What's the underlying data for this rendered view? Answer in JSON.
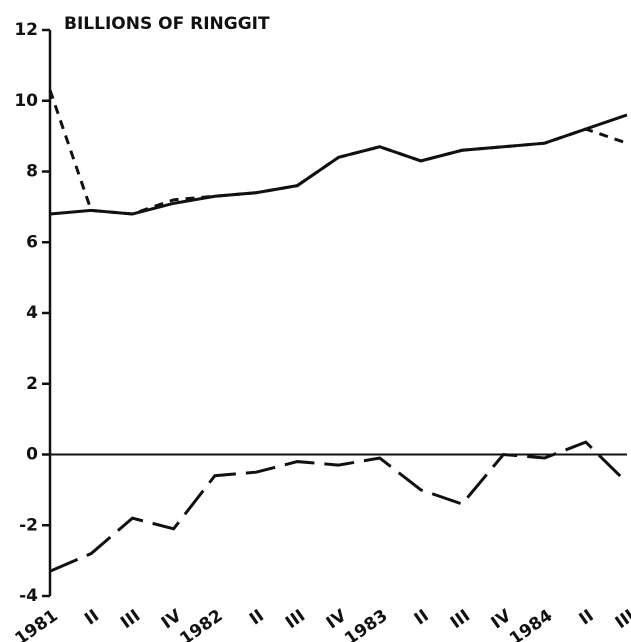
{
  "chart_data": {
    "type": "line",
    "title": "BILLIONS OF RINGGIT",
    "categories": [
      "1981",
      "II",
      "III",
      "IV",
      "1982",
      "II",
      "III",
      "IV",
      "1983",
      "II",
      "III",
      "IV",
      "1984",
      "II",
      "III"
    ],
    "series": [
      {
        "color": "#111111",
        "style": "solid",
        "values": [
          6.8,
          6.9,
          6.8,
          7.1,
          7.3,
          7.4,
          7.6,
          8.4,
          8.7,
          8.3,
          8.6,
          8.7,
          8.8,
          9.2,
          9.6
        ]
      },
      {
        "color": "#111111",
        "style": "dashed",
        "values": [
          10.3,
          6.9,
          6.8,
          7.2,
          7.3,
          7.4,
          7.6,
          8.4,
          8.7,
          8.3,
          8.6,
          8.7,
          8.8,
          9.2,
          8.8
        ]
      },
      {
        "color": "#111111",
        "style": "long-dash",
        "values": [
          -3.3,
          -2.8,
          -1.8,
          -2.1,
          -0.6,
          -0.5,
          -0.2,
          -0.3,
          -0.1,
          -1.0,
          -1.4,
          0.0,
          -0.1,
          0.35,
          -0.8
        ]
      }
    ],
    "ylim": [
      -4,
      12
    ],
    "yticks": [
      -4,
      -2,
      0,
      2,
      4,
      6,
      8,
      10,
      12
    ],
    "grid": false
  }
}
